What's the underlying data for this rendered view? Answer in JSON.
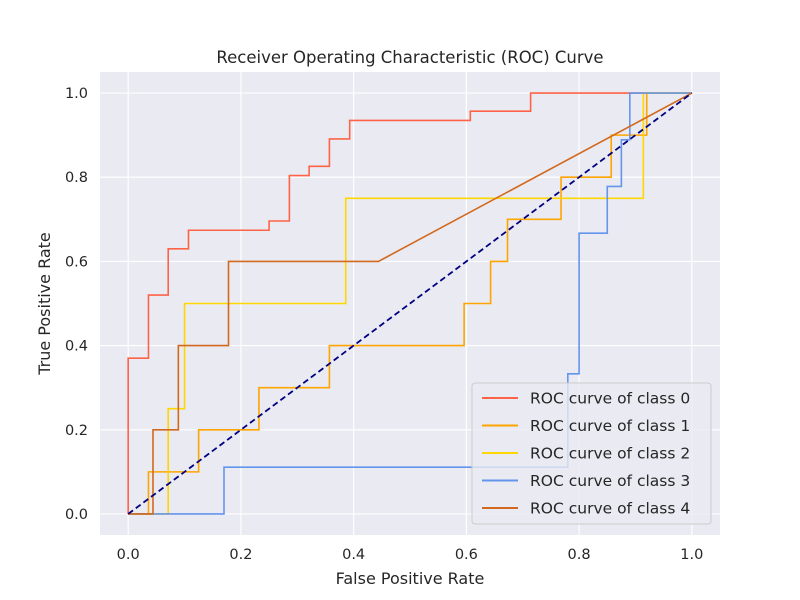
{
  "chart_data": {
    "type": "line",
    "title": "Receiver Operating Characteristic (ROC) Curve",
    "xlabel": "False Positive Rate",
    "ylabel": "True Positive Rate",
    "xlim": [
      -0.05,
      1.05
    ],
    "ylim": [
      -0.05,
      1.05
    ],
    "xticks": [
      0.0,
      0.2,
      0.4,
      0.6,
      0.8,
      1.0
    ],
    "yticks": [
      0.0,
      0.2,
      0.4,
      0.6,
      0.8,
      1.0
    ],
    "xtick_labels": [
      "0.0",
      "0.2",
      "0.4",
      "0.6",
      "0.8",
      "1.0"
    ],
    "ytick_labels": [
      "0.0",
      "0.2",
      "0.4",
      "0.6",
      "0.8",
      "1.0"
    ],
    "grid": true,
    "legend_position": "lower-right",
    "background": "#eaeaf2",
    "series": [
      {
        "name": "ROC curve of class 0",
        "color": "#ff6347",
        "x": [
          0,
          0,
          0.036,
          0.036,
          0.071,
          0.071,
          0.107,
          0.107,
          0.179,
          0.25,
          0.25,
          0.286,
          0.286,
          0.321,
          0.321,
          0.357,
          0.357,
          0.393,
          0.393,
          0.607,
          0.607,
          0.714,
          0.714,
          1.0
        ],
        "y": [
          0,
          0.37,
          0.37,
          0.52,
          0.52,
          0.63,
          0.63,
          0.674,
          0.674,
          0.674,
          0.696,
          0.696,
          0.804,
          0.804,
          0.826,
          0.826,
          0.891,
          0.891,
          0.935,
          0.935,
          0.957,
          0.957,
          1.0,
          1.0
        ]
      },
      {
        "name": "ROC curve of class 1",
        "color": "#ffa500",
        "x": [
          0,
          0.036,
          0.036,
          0.125,
          0.125,
          0.232,
          0.232,
          0.357,
          0.357,
          0.596,
          0.596,
          0.643,
          0.643,
          0.673,
          0.673,
          0.768,
          0.768,
          0.857,
          0.857,
          0.92,
          0.92,
          1.0
        ],
        "y": [
          0,
          0,
          0.1,
          0.1,
          0.2,
          0.2,
          0.3,
          0.3,
          0.4,
          0.4,
          0.5,
          0.5,
          0.6,
          0.6,
          0.7,
          0.7,
          0.8,
          0.8,
          0.9,
          0.9,
          1.0,
          1.0
        ]
      },
      {
        "name": "ROC curve of class 2",
        "color": "#ffd700",
        "x": [
          0,
          0.071,
          0.071,
          0.1,
          0.1,
          0.386,
          0.386,
          0.914,
          0.914,
          1.0
        ],
        "y": [
          0,
          0,
          0.25,
          0.25,
          0.5,
          0.5,
          0.75,
          0.75,
          1.0,
          1.0
        ]
      },
      {
        "name": "ROC curve of class 3",
        "color": "#6495ed",
        "x": [
          0,
          0.17,
          0.17,
          0.78,
          0.78,
          0.8,
          0.8,
          0.85,
          0.85,
          0.875,
          0.875,
          0.89,
          0.89,
          1.0
        ],
        "y": [
          0,
          0,
          0.111,
          0.111,
          0.333,
          0.333,
          0.667,
          0.667,
          0.778,
          0.778,
          0.889,
          0.889,
          1.0,
          1.0
        ]
      },
      {
        "name": "ROC curve of class 4",
        "color": "#d2691e",
        "x": [
          0,
          0.044,
          0.044,
          0.089,
          0.089,
          0.178,
          0.178,
          0.444,
          1.0
        ],
        "y": [
          0,
          0,
          0.2,
          0.2,
          0.4,
          0.4,
          0.6,
          0.6,
          1.0
        ]
      }
    ],
    "reference_line": {
      "x": [
        0,
        1
      ],
      "y": [
        0,
        1
      ],
      "color": "#000080",
      "style": "dashed"
    }
  }
}
